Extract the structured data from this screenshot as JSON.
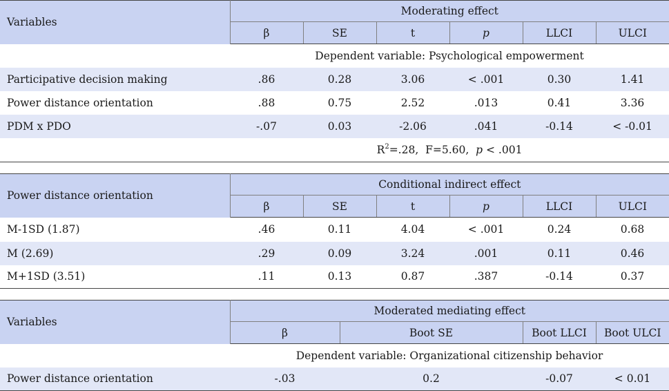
{
  "table1": {
    "row_header": "Variables",
    "group_header": "Moderating effect",
    "columns": [
      "β",
      "SE",
      "t",
      "p",
      "LLCI",
      "ULCI"
    ],
    "dependent_label": "Dependent variable: Psychological empowerment",
    "rows": [
      {
        "name": "Participative decision making",
        "cells": [
          ".86",
          "0.28",
          "3.06",
          "< .001",
          "0.30",
          "1.41"
        ]
      },
      {
        "name": "Power distance orientation",
        "cells": [
          ".88",
          "0.75",
          "2.52",
          ".013",
          "0.41",
          "3.36"
        ]
      },
      {
        "name": "PDM x PDO",
        "cells": [
          "-.07",
          "0.03",
          "-2.06",
          ".041",
          "-0.14",
          "< -0.01"
        ]
      }
    ],
    "footer": {
      "r": "R",
      "sup": "2",
      "r_rest": "=.28,  F=5.60,  ",
      "p": "p",
      "p_rest": " < .001"
    }
  },
  "table2": {
    "row_header": "Power distance orientation",
    "group_header": "Conditional indirect effect",
    "columns": [
      "β",
      "SE",
      "t",
      "p",
      "LLCI",
      "ULCI"
    ],
    "rows": [
      {
        "name": "M-1SD (1.87)",
        "cells": [
          ".46",
          "0.11",
          "4.04",
          "< .001",
          "0.24",
          "0.68"
        ]
      },
      {
        "name": "M (2.69)",
        "cells": [
          ".29",
          "0.09",
          "3.24",
          ".001",
          "0.11",
          "0.46"
        ]
      },
      {
        "name": "M+1SD (3.51)",
        "cells": [
          ".11",
          "0.13",
          "0.87",
          ".387",
          "-0.14",
          "0.37"
        ]
      }
    ]
  },
  "table3": {
    "row_header": "Variables",
    "group_header": "Moderated mediating effect",
    "columns": [
      "β",
      "Boot SE",
      "Boot LLCI",
      "Boot ULCI"
    ],
    "dependent_label": "Dependent variable: Organizational citizenship behavior",
    "rows": [
      {
        "name": "Power distance orientation",
        "cells": [
          "-.03",
          "0.2",
          "-0.07",
          "< 0.01"
        ]
      }
    ]
  },
  "colors": {
    "header_bg": "#c9d3f2",
    "band_bg": "#e2e7f7",
    "rule": "#444444"
  }
}
